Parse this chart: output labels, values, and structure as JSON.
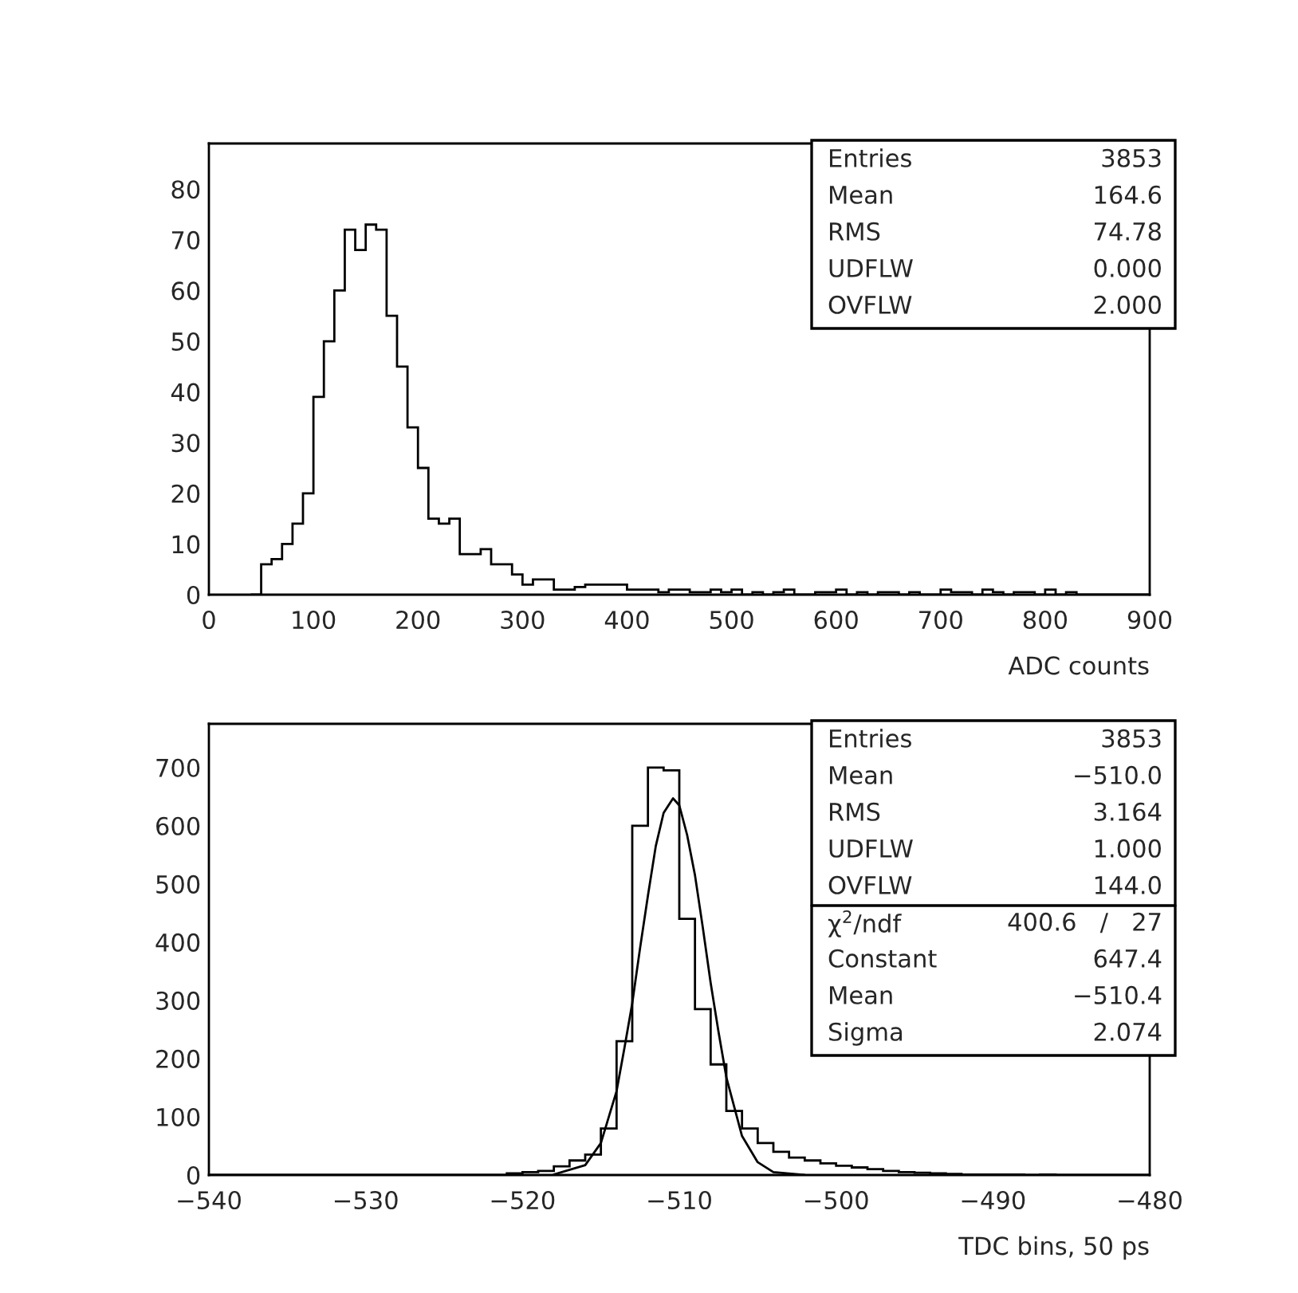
{
  "chart_data": [
    {
      "type": "histogram",
      "xlabel": "ADC counts",
      "xlim": [
        0,
        900
      ],
      "ylim": [
        0,
        89
      ],
      "xticks": [
        0,
        100,
        200,
        300,
        400,
        500,
        600,
        700,
        800,
        900
      ],
      "yticks": [
        0,
        10,
        20,
        30,
        40,
        50,
        60,
        70,
        80
      ],
      "bins": [
        40,
        50,
        60,
        70,
        80,
        90,
        100,
        110,
        120,
        130,
        140,
        150,
        160,
        170,
        180,
        190,
        200,
        210,
        220,
        230,
        240,
        250,
        260,
        270,
        280,
        290,
        300,
        310,
        320,
        330,
        340,
        350,
        360,
        370,
        380,
        390,
        400,
        410,
        420,
        430,
        440,
        450,
        460,
        470,
        480,
        490,
        500,
        510,
        520,
        530,
        540,
        550,
        560,
        570,
        580,
        590,
        600,
        610,
        620,
        630,
        640,
        650,
        660,
        670,
        680,
        690,
        700,
        710,
        720,
        730,
        740,
        750,
        760,
        770,
        780,
        790,
        800,
        810,
        820,
        830,
        840,
        850,
        860,
        870,
        880,
        890,
        900
      ],
      "values": [
        0,
        6,
        7,
        10,
        14,
        20,
        39,
        50,
        60,
        72,
        68,
        73,
        72,
        55,
        45,
        33,
        25,
        15,
        14,
        15,
        8,
        8,
        9,
        6,
        6,
        4,
        2,
        3,
        3,
        1,
        1,
        1.5,
        2,
        2,
        2,
        2,
        1,
        1,
        1,
        0.5,
        1,
        1,
        0.5,
        0.5,
        1,
        0.5,
        1,
        0,
        0.5,
        0,
        0.5,
        1,
        0,
        0,
        0.5,
        0.5,
        1,
        0,
        0.5,
        0,
        0.5,
        0.5,
        0,
        0.5,
        0,
        0,
        1,
        0.5,
        0.5,
        0,
        1,
        0.5,
        0,
        0.5,
        0.5,
        0,
        1,
        0,
        0.5,
        0,
        0,
        0,
        0,
        0,
        0,
        0
      ],
      "color": "#000000",
      "grid": false,
      "annotations": [
        "Entries",
        "3853",
        "Mean",
        "164.6",
        "RMS",
        "74.78",
        "UDFLW",
        "0.000",
        "OVFLW",
        "2.000"
      ]
    },
    {
      "type": "histogram",
      "xlabel": "TDC bins, 50 ps",
      "xlim": [
        -540,
        -480
      ],
      "ylim": [
        0,
        775
      ],
      "xticks": [
        -540,
        -530,
        -520,
        -510,
        -500,
        -490,
        -480
      ],
      "yticks": [
        0,
        100,
        200,
        300,
        400,
        500,
        600,
        700
      ],
      "bins": [
        -540,
        -539,
        -538,
        -537,
        -536,
        -535,
        -534,
        -533,
        -532,
        -531,
        -530,
        -529,
        -528,
        -527,
        -526,
        -525,
        -524,
        -523,
        -522,
        -521,
        -520,
        -519,
        -518,
        -517,
        -516,
        -515,
        -514,
        -513,
        -512,
        -511,
        -510,
        -509,
        -508,
        -507,
        -506,
        -505,
        -504,
        -503,
        -502,
        -501,
        -500,
        -499,
        -498,
        -497,
        -496,
        -495,
        -494,
        -493,
        -492,
        -491,
        -490,
        -489,
        -488,
        -487,
        -486,
        -485,
        -484,
        -483,
        -482,
        -481,
        -480
      ],
      "values": [
        0,
        0,
        0,
        0,
        0,
        0,
        0,
        0,
        0,
        0,
        0,
        0,
        0,
        0,
        0,
        0,
        0,
        0,
        0,
        3,
        5,
        7,
        15,
        25,
        35,
        80,
        230,
        600,
        700,
        695,
        440,
        285,
        190,
        110,
        80,
        55,
        40,
        30,
        25,
        20,
        16,
        13,
        10,
        7,
        5,
        4,
        3,
        2,
        1,
        1,
        1,
        1,
        0,
        1,
        0,
        0,
        0,
        0,
        0,
        0
      ],
      "color": "#000000",
      "grid": false,
      "series": [
        {
          "type": "line",
          "color": "#000000",
          "x": [
            -518,
            -516,
            -515,
            -514,
            -513.5,
            -513,
            -512.5,
            -512,
            -511.5,
            -511,
            -510.4,
            -510,
            -509.5,
            -509,
            -508.5,
            -508,
            -507.5,
            -507,
            -506,
            -505,
            -504,
            -502
          ],
          "values": [
            1,
            17,
            55,
            144,
            218,
            295,
            390,
            480,
            565,
            622,
            647,
            635,
            584,
            515,
            425,
            330,
            246,
            168,
            67,
            22,
            5,
            0
          ]
        }
      ],
      "annotations": [
        "Entries",
        "3853",
        "Mean",
        "−510.0",
        "RMS",
        "3.164",
        "UDFLW",
        "1.000",
        "OVFLW",
        "144.0",
        "χ$^{2}$/ndf",
        "400.6   /   27",
        "Constant",
        "647.4",
        "Mean",
        "−510.4",
        "Sigma",
        "2.074"
      ]
    }
  ]
}
